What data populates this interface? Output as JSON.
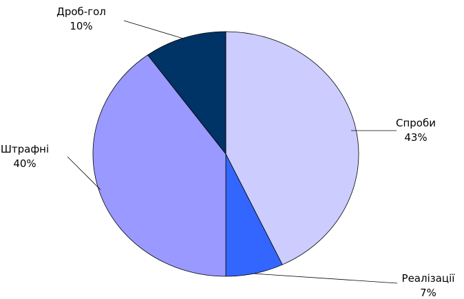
{
  "chart_data": {
    "type": "pie",
    "categories": [
      "Спроби",
      "Реалізації",
      "Штрафні",
      "Дроб-гол"
    ],
    "values": [
      43,
      7,
      40,
      10
    ],
    "value_labels": [
      "43%",
      "7%",
      "40%",
      "10%"
    ],
    "colors": [
      "#ccccff",
      "#3366ff",
      "#9999ff",
      "#003366"
    ],
    "start_angle_deg": 0,
    "direction": "clockwise",
    "legend": "none",
    "title": ""
  }
}
